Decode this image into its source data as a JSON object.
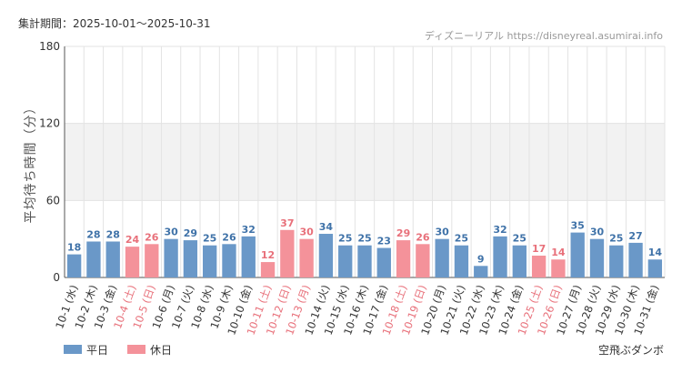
{
  "chart_data": {
    "type": "bar",
    "period_label": "集計期間：2025-10-01～2025-10-31",
    "source": "ディズニーリアル https://disneyreal.asumirai.info",
    "ylabel": "平均待ち時間（分）",
    "ylim": [
      0,
      180
    ],
    "yticks": [
      0,
      60,
      120,
      180
    ],
    "shaded_band": [
      60,
      120
    ],
    "attraction": "空飛ぶダンボ",
    "legend": [
      {
        "key": "weekday",
        "label": "平日",
        "color": "#6a98c8"
      },
      {
        "key": "holiday",
        "label": "休日",
        "color": "#f4929a"
      }
    ],
    "categories": [
      "10-1 (水)",
      "10-2 (木)",
      "10-3 (金)",
      "10-4 (土)",
      "10-5 (日)",
      "10-6 (月)",
      "10-7 (火)",
      "10-8 (水)",
      "10-9 (木)",
      "10-10 (金)",
      "10-11 (土)",
      "10-12 (日)",
      "10-13 (月)",
      "10-14 (火)",
      "10-15 (水)",
      "10-16 (木)",
      "10-17 (金)",
      "10-18 (土)",
      "10-19 (日)",
      "10-20 (月)",
      "10-21 (火)",
      "10-22 (水)",
      "10-23 (木)",
      "10-24 (金)",
      "10-25 (土)",
      "10-26 (日)",
      "10-27 (月)",
      "10-28 (火)",
      "10-29 (水)",
      "10-30 (木)",
      "10-31 (金)"
    ],
    "values": [
      18,
      28,
      28,
      24,
      26,
      30,
      29,
      25,
      26,
      32,
      12,
      37,
      30,
      34,
      25,
      25,
      23,
      29,
      26,
      30,
      25,
      9,
      32,
      25,
      17,
      14,
      35,
      30,
      25,
      27,
      14
    ],
    "day_types": [
      "weekday",
      "weekday",
      "weekday",
      "holiday",
      "holiday",
      "weekday",
      "weekday",
      "weekday",
      "weekday",
      "weekday",
      "holiday",
      "holiday",
      "holiday",
      "weekday",
      "weekday",
      "weekday",
      "weekday",
      "holiday",
      "holiday",
      "weekday",
      "weekday",
      "weekday",
      "weekday",
      "weekday",
      "holiday",
      "holiday",
      "weekday",
      "weekday",
      "weekday",
      "weekday",
      "weekday"
    ],
    "colors": {
      "weekday_bar": "#6a98c8",
      "holiday_bar": "#f4929a",
      "weekday_text": "#3f72a8",
      "holiday_text": "#e8707a",
      "band": "#f2f2f2",
      "grid": "#e3e3e3",
      "axis": "#555555"
    }
  }
}
